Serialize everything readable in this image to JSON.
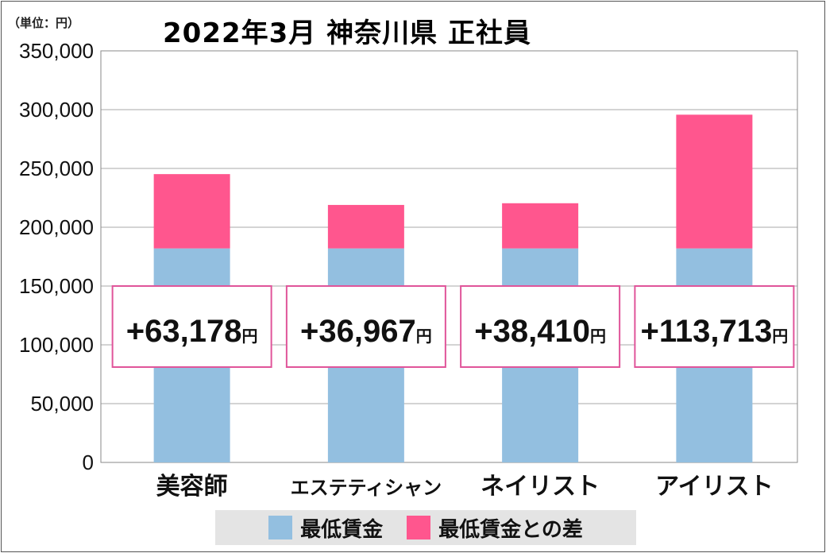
{
  "chart_data": {
    "type": "bar",
    "stacked": true,
    "title": "2022年3月 神奈川県 正社員",
    "unit_label": "（単位：円）",
    "categories": [
      "美容師",
      "エステティシャン",
      "ネイリスト",
      "アイリスト"
    ],
    "series": [
      {
        "name": "最低賃金",
        "color": "#93bfe0",
        "values": [
          182000,
          182000,
          182000,
          182000
        ]
      },
      {
        "name": "最低賃金との差",
        "color": "#ff568e",
        "values": [
          63178,
          36967,
          38410,
          113713
        ]
      }
    ],
    "annotations": [
      "+63,178",
      "+36,967",
      "+38,410",
      "+113,713"
    ],
    "annotation_unit": "円",
    "ylim": [
      0,
      350000
    ],
    "yticks": [
      "0",
      "50,000",
      "100,000",
      "150,000",
      "200,000",
      "250,000",
      "300,000",
      "350,000"
    ],
    "grid": true,
    "legend_position": "bottom"
  }
}
